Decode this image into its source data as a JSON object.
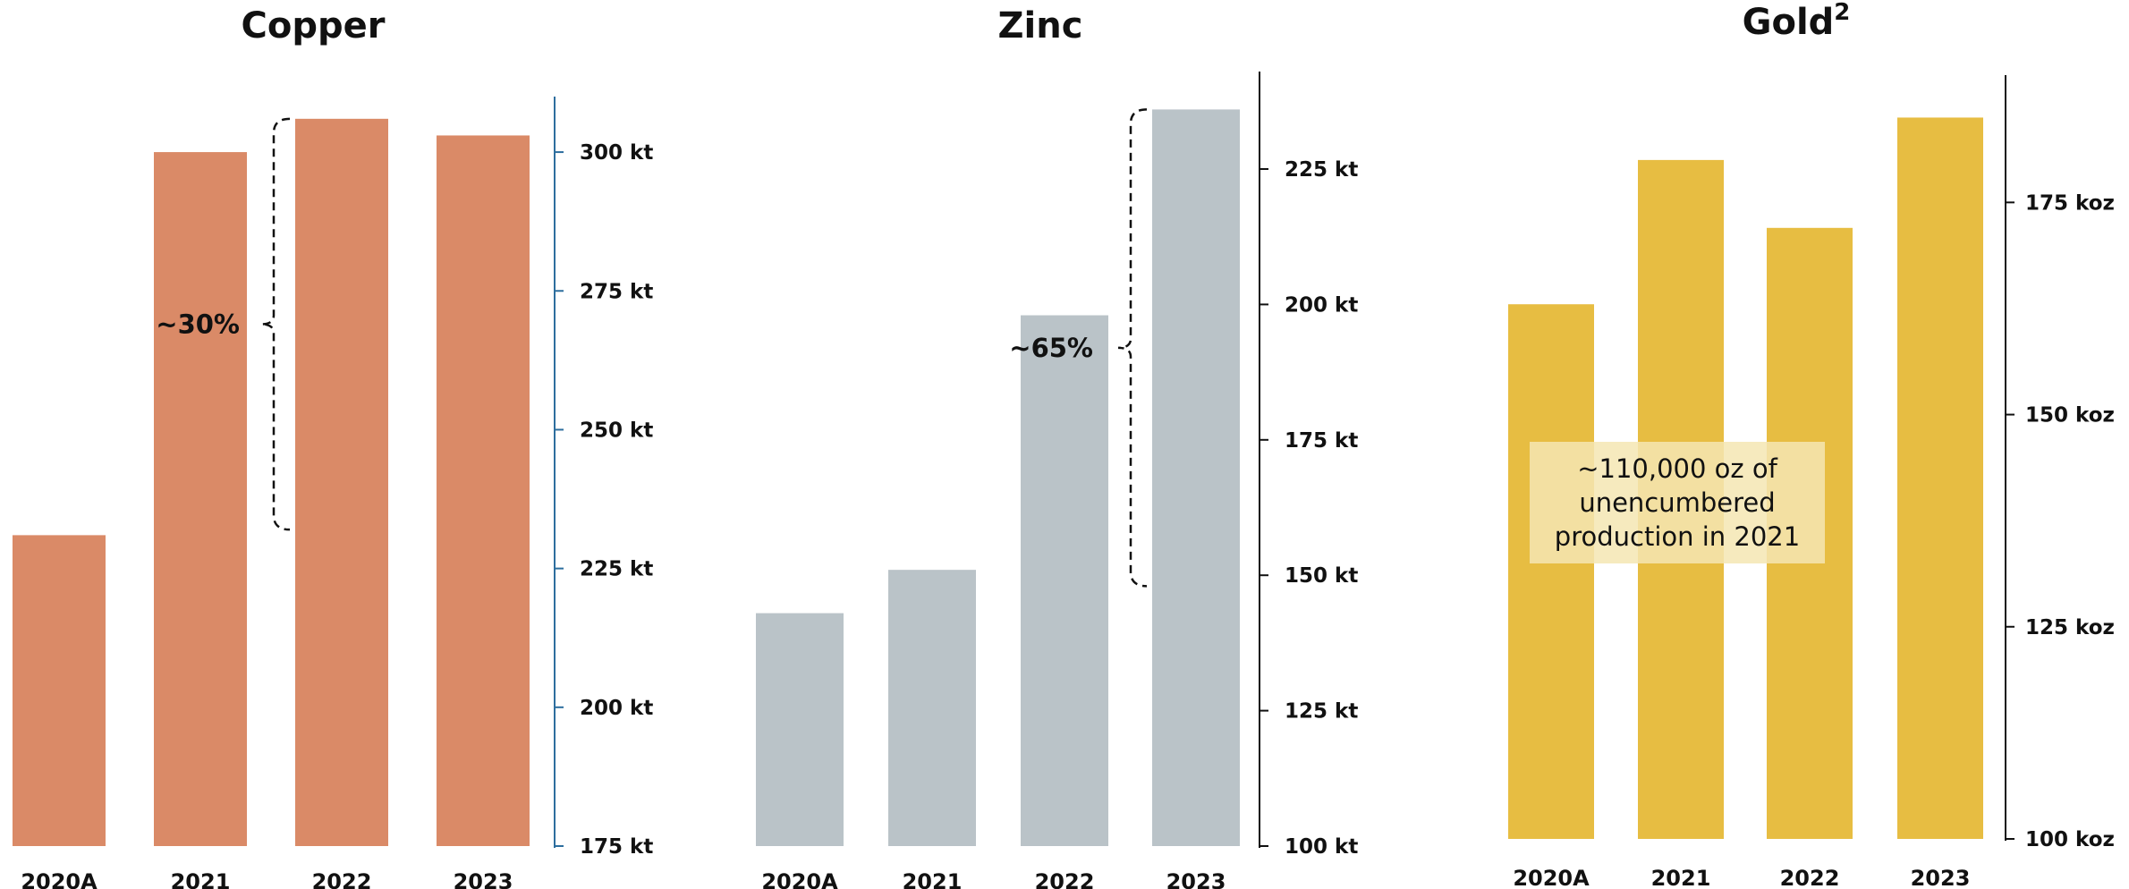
{
  "chart_data": [
    {
      "type": "bar",
      "title": "Copper",
      "categories": [
        "2020A",
        "2021",
        "2022",
        "2023"
      ],
      "values": [
        231,
        300,
        306,
        303
      ],
      "ylim": [
        175,
        310
      ],
      "yticks": [
        175,
        200,
        225,
        250,
        275,
        300
      ],
      "tick_labels": [
        "175 kt",
        "200 kt",
        "225 kt",
        "250 kt",
        "275 kt",
        "300 kt"
      ],
      "unit": "kt",
      "color": "#DA8A67",
      "axis_color": "#2D6E9E",
      "bracket": {
        "label": "~30%",
        "from_value": 232,
        "to_value": 306
      }
    },
    {
      "type": "bar",
      "title": "Zinc",
      "categories": [
        "2020A",
        "2021",
        "2022",
        "2023"
      ],
      "values": [
        143,
        151,
        198,
        236
      ],
      "ylim": [
        100,
        243
      ],
      "yticks": [
        100,
        125,
        150,
        175,
        200,
        225
      ],
      "tick_labels": [
        "100 kt",
        "125 kt",
        "150 kt",
        "175 kt",
        "200 kt",
        "225 kt"
      ],
      "unit": "kt",
      "color": "#BAC3C8",
      "axis_color": "#111111",
      "bracket": {
        "label": "~65%",
        "from_value": 148,
        "to_value": 236
      }
    },
    {
      "type": "bar",
      "title": "Gold",
      "title_sup": "2",
      "categories": [
        "2020A",
        "2021",
        "2022",
        "2023"
      ],
      "values": [
        163,
        180,
        172,
        185
      ],
      "ylim": [
        100,
        190
      ],
      "yticks": [
        100,
        125,
        150,
        175
      ],
      "tick_labels": [
        "100 koz",
        "125 koz",
        "150 koz",
        "175 koz"
      ],
      "unit": "koz",
      "color": "#E7BD42",
      "axis_color": "#111111",
      "note": {
        "lines": [
          "~110,000 oz of",
          "unencumbered",
          "production in 2021"
        ],
        "box_color": "#F5E6B3"
      }
    }
  ]
}
